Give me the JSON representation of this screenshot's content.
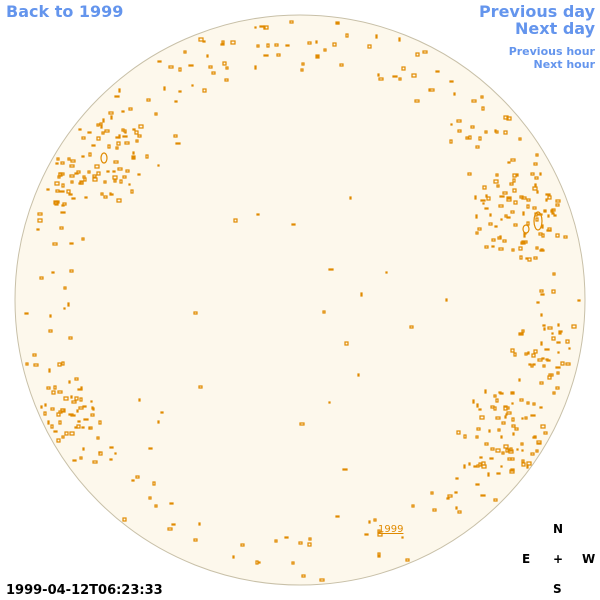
{
  "nav": {
    "back": "Back to 1999",
    "previous_day": "Previous day",
    "next_day": "Next day",
    "previous_hour": "Previous hour",
    "next_hour": "Next hour"
  },
  "year_label": "1999",
  "timestamp": "1999-04-12T06:23:33",
  "compass": {
    "north": "N",
    "east": "E",
    "center": "+",
    "west": "W",
    "south": "S"
  },
  "colors": {
    "disk_fill": "#fdf8ec",
    "disk_edge": "#c8c0a8",
    "feature": "#e08a00",
    "nav": "#6495ed"
  }
}
